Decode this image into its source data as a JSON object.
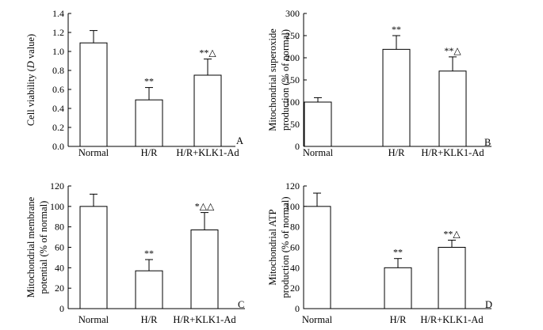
{
  "chart_data": [
    {
      "panel": "A",
      "type": "bar",
      "ylabel_parts": [
        "Cell viability (",
        "D",
        " value)"
      ],
      "categories": [
        "Normal",
        "H/R",
        "H/R+KLK1-Ad"
      ],
      "values": [
        1.09,
        0.49,
        0.75
      ],
      "errors": [
        0.13,
        0.13,
        0.17
      ],
      "annotations": [
        "",
        "**",
        "**△"
      ],
      "yticks": [
        "0.0",
        "0.2",
        "0.4",
        "0.6",
        "0.8",
        "1.0",
        "1.2",
        "1.4"
      ],
      "ylim": [
        0,
        1.4
      ]
    },
    {
      "panel": "B",
      "type": "bar",
      "ylabel_lines": [
        "Mitochondrial superoxide",
        "production (% of normal)"
      ],
      "categories": [
        "Normal",
        "H/R",
        "H/R+KLK1-Ad"
      ],
      "values": [
        100,
        219,
        170
      ],
      "errors": [
        10,
        31,
        32
      ],
      "annotations": [
        "",
        "**",
        "**△"
      ],
      "yticks": [
        "0",
        "50",
        "100",
        "150",
        "200",
        "250",
        "300"
      ],
      "ylim": [
        0,
        300
      ]
    },
    {
      "panel": "C",
      "type": "bar",
      "ylabel_lines": [
        "Mitochondrial membrane",
        "potential (% of normal)"
      ],
      "categories": [
        "Normal",
        "H/R",
        "H/R+KLK1-Ad"
      ],
      "values": [
        100,
        37,
        77
      ],
      "errors": [
        12,
        11,
        17
      ],
      "annotations": [
        "",
        "**",
        "*△△"
      ],
      "yticks": [
        "0",
        "20",
        "40",
        "60",
        "80",
        "100",
        "120"
      ],
      "ylim": [
        0,
        120
      ]
    },
    {
      "panel": "D",
      "type": "bar",
      "ylabel_lines": [
        "Mitochondrial ATP",
        "production (% of normal)"
      ],
      "categories": [
        "Normal",
        "H/R",
        "H/R+KLK1-Ad"
      ],
      "values": [
        100,
        40,
        60
      ],
      "errors": [
        13,
        9,
        7
      ],
      "annotations": [
        "",
        "**",
        "**△"
      ],
      "yticks": [
        "0",
        "20",
        "40",
        "60",
        "80",
        "100",
        "120"
      ],
      "ylim": [
        0,
        120
      ]
    }
  ]
}
